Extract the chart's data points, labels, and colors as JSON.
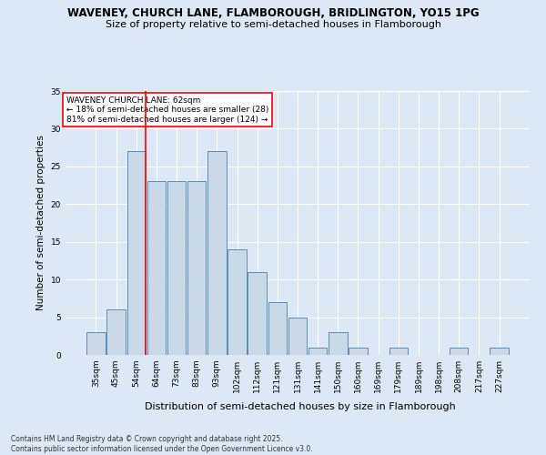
{
  "title1": "WAVENEY, CHURCH LANE, FLAMBOROUGH, BRIDLINGTON, YO15 1PG",
  "title2": "Size of property relative to semi-detached houses in Flamborough",
  "xlabel": "Distribution of semi-detached houses by size in Flamborough",
  "ylabel": "Number of semi-detached properties",
  "categories": [
    "35sqm",
    "45sqm",
    "54sqm",
    "64sqm",
    "73sqm",
    "83sqm",
    "93sqm",
    "102sqm",
    "112sqm",
    "121sqm",
    "131sqm",
    "141sqm",
    "150sqm",
    "160sqm",
    "169sqm",
    "179sqm",
    "189sqm",
    "198sqm",
    "208sqm",
    "217sqm",
    "227sqm"
  ],
  "values": [
    3,
    6,
    27,
    23,
    23,
    23,
    27,
    14,
    11,
    7,
    5,
    1,
    3,
    1,
    0,
    1,
    0,
    0,
    1,
    0,
    1
  ],
  "bar_color": "#c9d9e8",
  "bar_edge_color": "#5b8db8",
  "background_color": "#dce8f5",
  "grid_color": "#ffffff",
  "redline_index": 2,
  "annotation_title": "WAVENEY CHURCH LANE: 62sqm",
  "annotation_line1": "← 18% of semi-detached houses are smaller (28)",
  "annotation_line2": "81% of semi-detached houses are larger (124) →",
  "footer1": "Contains HM Land Registry data © Crown copyright and database right 2025.",
  "footer2": "Contains public sector information licensed under the Open Government Licence v3.0.",
  "ylim": [
    0,
    35
  ],
  "yticks": [
    0,
    5,
    10,
    15,
    20,
    25,
    30,
    35
  ]
}
